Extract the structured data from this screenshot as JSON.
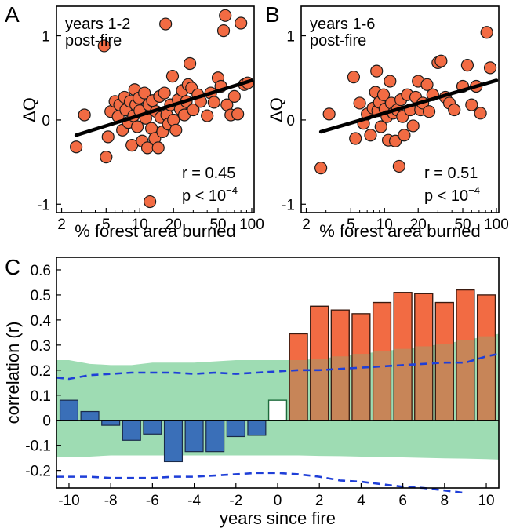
{
  "colors": {
    "dot_fill": "#f26b43",
    "dot_stroke": "#1a1a1a",
    "bar_red": "#f26b43",
    "bar_blue": "#3a6fb8",
    "bar_open_stroke": "#1d6b3b",
    "band_green": "#9edcb3",
    "band_overlap": "#c4875a",
    "dash_blue": "#1f3fd8",
    "fit_line": "#000000"
  },
  "chart_data": [
    {
      "panel": "A",
      "type": "scatter",
      "annotation_lines": [
        "years 1-2",
        "post-fire"
      ],
      "xlabel": "% forest area burned",
      "ylabel": "ΔQ",
      "xscale": "log",
      "xlim": [
        1.8,
        105
      ],
      "ylim": [
        -1.1,
        1.35
      ],
      "xticks": [
        2,
        5,
        10,
        20,
        50,
        100
      ],
      "yticks": [
        -1,
        0,
        1
      ],
      "grid": false,
      "stat_r": "r = 0.45",
      "stat_p_prefix": "p < 10",
      "stat_p_exp": "−4",
      "fit": [
        [
          2.7,
          -0.18
        ],
        [
          100,
          0.47
        ]
      ],
      "points": [
        [
          2.7,
          -0.32
        ],
        [
          3.2,
          0.06
        ],
        [
          4.8,
          0.88
        ],
        [
          5.0,
          -0.44
        ],
        [
          5.2,
          -0.2
        ],
        [
          5.5,
          0.1
        ],
        [
          6.0,
          0.22
        ],
        [
          6.4,
          0.04
        ],
        [
          6.6,
          0.18
        ],
        [
          7.0,
          -0.12
        ],
        [
          7.3,
          0.27
        ],
        [
          7.5,
          0.12
        ],
        [
          7.9,
          -0.03
        ],
        [
          8.2,
          0.22
        ],
        [
          8.5,
          -0.3
        ],
        [
          8.8,
          0.05
        ],
        [
          9.0,
          0.36
        ],
        [
          9.2,
          0.18
        ],
        [
          9.5,
          -0.08
        ],
        [
          9.8,
          0.26
        ],
        [
          10.0,
          0.11
        ],
        [
          10.5,
          -0.25
        ],
        [
          11.0,
          0.32
        ],
        [
          11.3,
          0.02
        ],
        [
          11.7,
          -0.33
        ],
        [
          12.0,
          0.18
        ],
        [
          12.3,
          -0.97
        ],
        [
          12.7,
          -0.1
        ],
        [
          13.0,
          0.23
        ],
        [
          13.6,
          -0.22
        ],
        [
          14.0,
          0.1
        ],
        [
          14.6,
          -0.33
        ],
        [
          15.0,
          0.28
        ],
        [
          15.4,
          0.03
        ],
        [
          16.0,
          -0.14
        ],
        [
          16.6,
          0.32
        ],
        [
          17.0,
          1.14
        ],
        [
          17.4,
          0.06
        ],
        [
          18.0,
          -0.05
        ],
        [
          18.8,
          0.18
        ],
        [
          19.6,
          0.52
        ],
        [
          20.0,
          0.0
        ],
        [
          21.0,
          -0.12
        ],
        [
          22.0,
          0.24
        ],
        [
          23.0,
          0.13
        ],
        [
          24.0,
          0.35
        ],
        [
          25.0,
          0.06
        ],
        [
          26.0,
          0.22
        ],
        [
          27.0,
          0.42
        ],
        [
          28.0,
          0.67
        ],
        [
          29.0,
          0.38
        ],
        [
          30.0,
          0.12
        ],
        [
          33.0,
          0.3
        ],
        [
          35.0,
          0.22
        ],
        [
          40.0,
          0.05
        ],
        [
          43.0,
          0.32
        ],
        [
          46.0,
          0.21
        ],
        [
          50.0,
          0.5
        ],
        [
          53.0,
          0.4
        ],
        [
          56.0,
          1.06
        ],
        [
          58.0,
          1.24
        ],
        [
          60.0,
          0.18
        ],
        [
          65.0,
          0.06
        ],
        [
          70.0,
          0.28
        ],
        [
          75.0,
          0.07
        ],
        [
          80.0,
          1.15
        ],
        [
          86.0,
          0.42
        ],
        [
          92.0,
          0.44
        ]
      ]
    },
    {
      "panel": "B",
      "type": "scatter",
      "annotation_lines": [
        "years 1-6",
        "post-fire"
      ],
      "xlabel": "% forest area burned",
      "ylabel": "ΔQ",
      "xscale": "log",
      "xlim": [
        1.8,
        105
      ],
      "ylim": [
        -1.1,
        1.35
      ],
      "xticks": [
        2,
        5,
        10,
        20,
        50,
        100
      ],
      "yticks": [
        -1,
        0,
        1
      ],
      "grid": false,
      "stat_r": "r = 0.51",
      "stat_p_prefix": "p < 10",
      "stat_p_exp": "−4",
      "fit": [
        [
          2.7,
          -0.14
        ],
        [
          100,
          0.47
        ]
      ],
      "points": [
        [
          2.7,
          -0.57
        ],
        [
          3.2,
          0.07
        ],
        [
          5.3,
          0.51
        ],
        [
          5.5,
          -0.22
        ],
        [
          6.0,
          0.2
        ],
        [
          6.5,
          -0.04
        ],
        [
          7.0,
          0.07
        ],
        [
          7.5,
          -0.18
        ],
        [
          7.9,
          0.14
        ],
        [
          8.3,
          0.33
        ],
        [
          8.5,
          0.58
        ],
        [
          8.7,
          0.11
        ],
        [
          9.0,
          0.21
        ],
        [
          9.3,
          -0.08
        ],
        [
          9.8,
          0.3
        ],
        [
          10.1,
          0.13
        ],
        [
          10.5,
          0.04
        ],
        [
          10.8,
          -0.24
        ],
        [
          11.2,
          0.46
        ],
        [
          11.5,
          0.2
        ],
        [
          12.0,
          0.08
        ],
        [
          12.5,
          -0.25
        ],
        [
          13.0,
          0.12
        ],
        [
          13.5,
          -0.55
        ],
        [
          14.0,
          0.24
        ],
        [
          14.5,
          0.04
        ],
        [
          15.0,
          -0.18
        ],
        [
          16.0,
          0.3
        ],
        [
          17.0,
          0.12
        ],
        [
          18.0,
          -0.07
        ],
        [
          19.0,
          0.27
        ],
        [
          20.0,
          0.46
        ],
        [
          21.0,
          0.12
        ],
        [
          22.0,
          0.2
        ],
        [
          24.0,
          0.42
        ],
        [
          25.0,
          0.1
        ],
        [
          27.0,
          0.3
        ],
        [
          30.0,
          0.68
        ],
        [
          32.0,
          0.7
        ],
        [
          35.0,
          0.27
        ],
        [
          38.0,
          0.2
        ],
        [
          42.0,
          0.12
        ],
        [
          50.0,
          0.4
        ],
        [
          55.0,
          0.65
        ],
        [
          60.0,
          0.18
        ],
        [
          66.0,
          0.4
        ],
        [
          72.0,
          0.08
        ],
        [
          82.0,
          1.04
        ],
        [
          88.0,
          0.62
        ]
      ]
    },
    {
      "panel": "C",
      "type": "bar",
      "xlabel": "years since fire",
      "ylabel": "correlation (r)",
      "xlim": [
        -10.6,
        10.6
      ],
      "ylim": [
        -0.27,
        0.65
      ],
      "xticks": [
        -10,
        -8,
        -6,
        -4,
        -2,
        0,
        2,
        4,
        6,
        8,
        10
      ],
      "xtick_labels": [
        "-10",
        "-8",
        "-6",
        "-4",
        "-2",
        "0",
        "2",
        "4",
        "6",
        "8",
        "10"
      ],
      "yticks": [
        -0.2,
        -0.1,
        0,
        0.1,
        0.2,
        0.3,
        0.4,
        0.5,
        0.6
      ],
      "ytick_labels": [
        "-0.2",
        "-0.1",
        "0",
        "0.1",
        "0.2",
        "0.3",
        "0.4",
        "0.5",
        "0.6"
      ],
      "grid": false,
      "bars": {
        "x": [
          -10,
          -9,
          -8,
          -7,
          -6,
          -5,
          -4,
          -3,
          -2,
          -1,
          0,
          1,
          2,
          3,
          4,
          5,
          6,
          7,
          8,
          9,
          10
        ],
        "values": [
          0.08,
          0.035,
          -0.02,
          -0.08,
          -0.055,
          -0.165,
          -0.125,
          -0.125,
          -0.065,
          -0.06,
          0.08,
          0.345,
          0.455,
          0.44,
          0.425,
          0.47,
          0.51,
          0.505,
          0.47,
          0.52,
          0.5
        ]
      },
      "band": {
        "x": [
          -10.6,
          -10,
          -9,
          -8,
          -7,
          -6,
          -5,
          -4,
          -3,
          -2,
          -1,
          0,
          1,
          2,
          3,
          4,
          5,
          6,
          7,
          8,
          9,
          10,
          10.6
        ],
        "upper": [
          0.24,
          0.24,
          0.225,
          0.22,
          0.22,
          0.23,
          0.23,
          0.23,
          0.235,
          0.24,
          0.24,
          0.24,
          0.24,
          0.245,
          0.255,
          0.265,
          0.275,
          0.285,
          0.295,
          0.305,
          0.32,
          0.335,
          0.345
        ],
        "lower": [
          -0.145,
          -0.145,
          -0.145,
          -0.14,
          -0.14,
          -0.14,
          -0.14,
          -0.14,
          -0.14,
          -0.14,
          -0.14,
          -0.14,
          -0.14,
          -0.142,
          -0.143,
          -0.145,
          -0.147,
          -0.148,
          -0.15,
          -0.152,
          -0.153,
          -0.155,
          -0.157
        ]
      },
      "dashed_upper": {
        "x": [
          -10.6,
          -10,
          -9,
          -8,
          -7,
          -6,
          -5,
          -4,
          -3,
          -2,
          -1,
          0,
          1,
          2,
          3,
          4,
          5,
          6,
          7,
          8,
          9,
          10,
          10.6
        ],
        "y": [
          0.17,
          0.165,
          0.18,
          0.185,
          0.19,
          0.19,
          0.19,
          0.185,
          0.19,
          0.185,
          0.19,
          0.195,
          0.2,
          0.2,
          0.205,
          0.21,
          0.215,
          0.22,
          0.225,
          0.23,
          0.23,
          0.255,
          0.265
        ]
      },
      "dashed_lower": {
        "x": [
          -10.6,
          -10,
          -9,
          -8,
          -7,
          -6,
          -5,
          -4,
          -3,
          -2,
          -1,
          0,
          1,
          2,
          3,
          4,
          5,
          6,
          7,
          8,
          9
        ],
        "y": [
          -0.225,
          -0.225,
          -0.225,
          -0.23,
          -0.23,
          -0.23,
          -0.225,
          -0.225,
          -0.22,
          -0.215,
          -0.21,
          -0.21,
          -0.215,
          -0.225,
          -0.24,
          -0.245,
          -0.255,
          -0.265,
          -0.27,
          -0.28,
          -0.29
        ]
      }
    }
  ]
}
